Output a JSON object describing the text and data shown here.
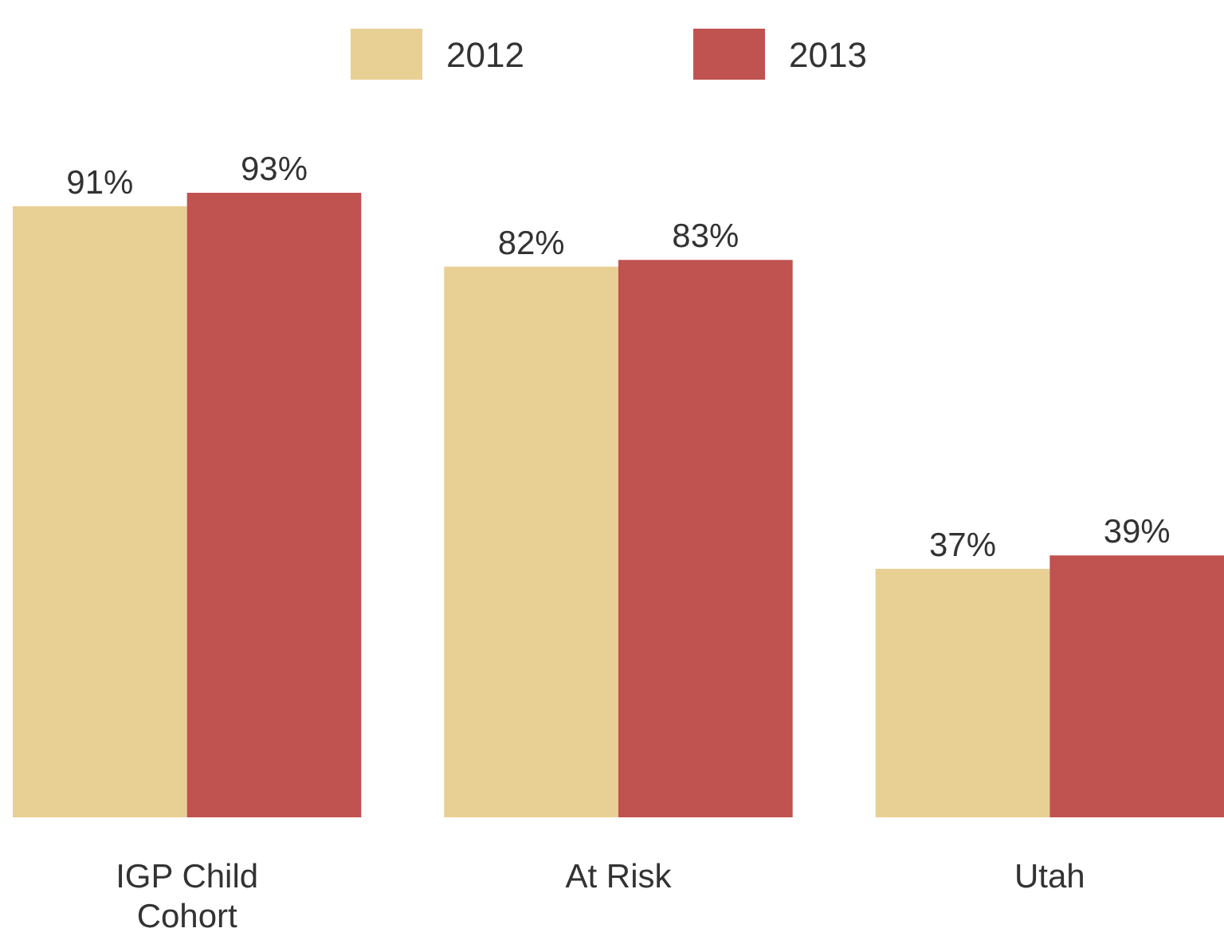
{
  "chart_data": {
    "type": "bar",
    "categories": [
      "IGP Child Cohort",
      "At Risk",
      "Utah"
    ],
    "series": [
      {
        "name": "2012",
        "color": "#e8cf94",
        "values": [
          91,
          82,
          37
        ],
        "value_labels": [
          "91%",
          "82%",
          "37%"
        ]
      },
      {
        "name": "2013",
        "color": "#c05250",
        "values": [
          93,
          83,
          39
        ],
        "value_labels": [
          "93%",
          "83%",
          "39%"
        ]
      }
    ],
    "legend": "top"
  }
}
